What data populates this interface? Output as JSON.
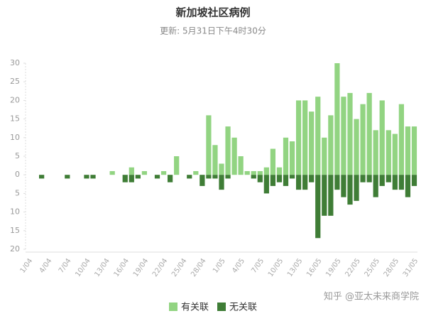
{
  "chart_data": {
    "type": "bar",
    "title": "新加坡社区病例",
    "subtitle": "更新: 5月31日下午4时30分",
    "watermark": "知乎 @亚太未来商学院",
    "categories": [
      "1/04",
      null,
      null,
      "4/04",
      null,
      null,
      "7/04",
      null,
      null,
      "10/04",
      null,
      null,
      "13/04",
      null,
      null,
      "16/04",
      null,
      null,
      "19/04",
      null,
      null,
      "22/04",
      null,
      null,
      "25/04",
      null,
      null,
      "28/04",
      null,
      null,
      "1/05",
      null,
      null,
      "4/05",
      null,
      null,
      "7/05",
      null,
      null,
      "10/05",
      null,
      null,
      "13/05",
      null,
      null,
      "16/05",
      null,
      null,
      "19/05",
      null,
      null,
      "22/05",
      null,
      null,
      "25/05",
      null,
      null,
      "28/05",
      null,
      null,
      "31/05"
    ],
    "series": [
      {
        "name": "有关联",
        "color": "#92d482",
        "values": [
          0,
          0,
          0,
          0,
          0,
          0,
          0,
          0,
          0,
          0,
          0,
          0,
          0,
          1,
          0,
          0,
          2,
          0,
          1,
          0,
          0,
          1,
          0,
          5,
          0,
          0,
          1,
          0,
          16,
          8,
          3,
          13,
          10,
          5,
          1,
          1,
          1,
          2,
          7,
          2,
          10,
          9,
          20,
          20,
          17,
          21,
          10,
          16,
          30,
          21,
          22,
          15,
          19,
          22,
          12,
          20,
          12,
          11,
          19,
          13,
          13
        ]
      },
      {
        "name": "无关联",
        "color": "#3f7d36",
        "values": [
          0,
          0,
          -1,
          0,
          0,
          0,
          -1,
          0,
          0,
          -1,
          -1,
          0,
          0,
          0,
          0,
          -2,
          -2,
          -1,
          0,
          0,
          -1,
          0,
          -2,
          0,
          0,
          -1,
          0,
          -3,
          -1,
          -1,
          -4,
          -1,
          0,
          0,
          0,
          -1,
          -2,
          -5,
          -3,
          -2,
          -3,
          -1,
          -4,
          -4,
          -2,
          -17,
          -11,
          -11,
          -4,
          -6,
          -8,
          -7,
          -2,
          -2,
          -6,
          -3,
          -2,
          -4,
          -4,
          -6,
          -3
        ]
      }
    ],
    "ylim": [
      -20,
      30
    ],
    "yticks": [
      30,
      25,
      20,
      15,
      10,
      5,
      0,
      {
        "value": -5,
        "label": "5"
      },
      {
        "value": -10,
        "label": "10"
      },
      {
        "value": -15,
        "label": "15"
      },
      {
        "value": -20,
        "label": "20"
      }
    ],
    "grid": false
  }
}
